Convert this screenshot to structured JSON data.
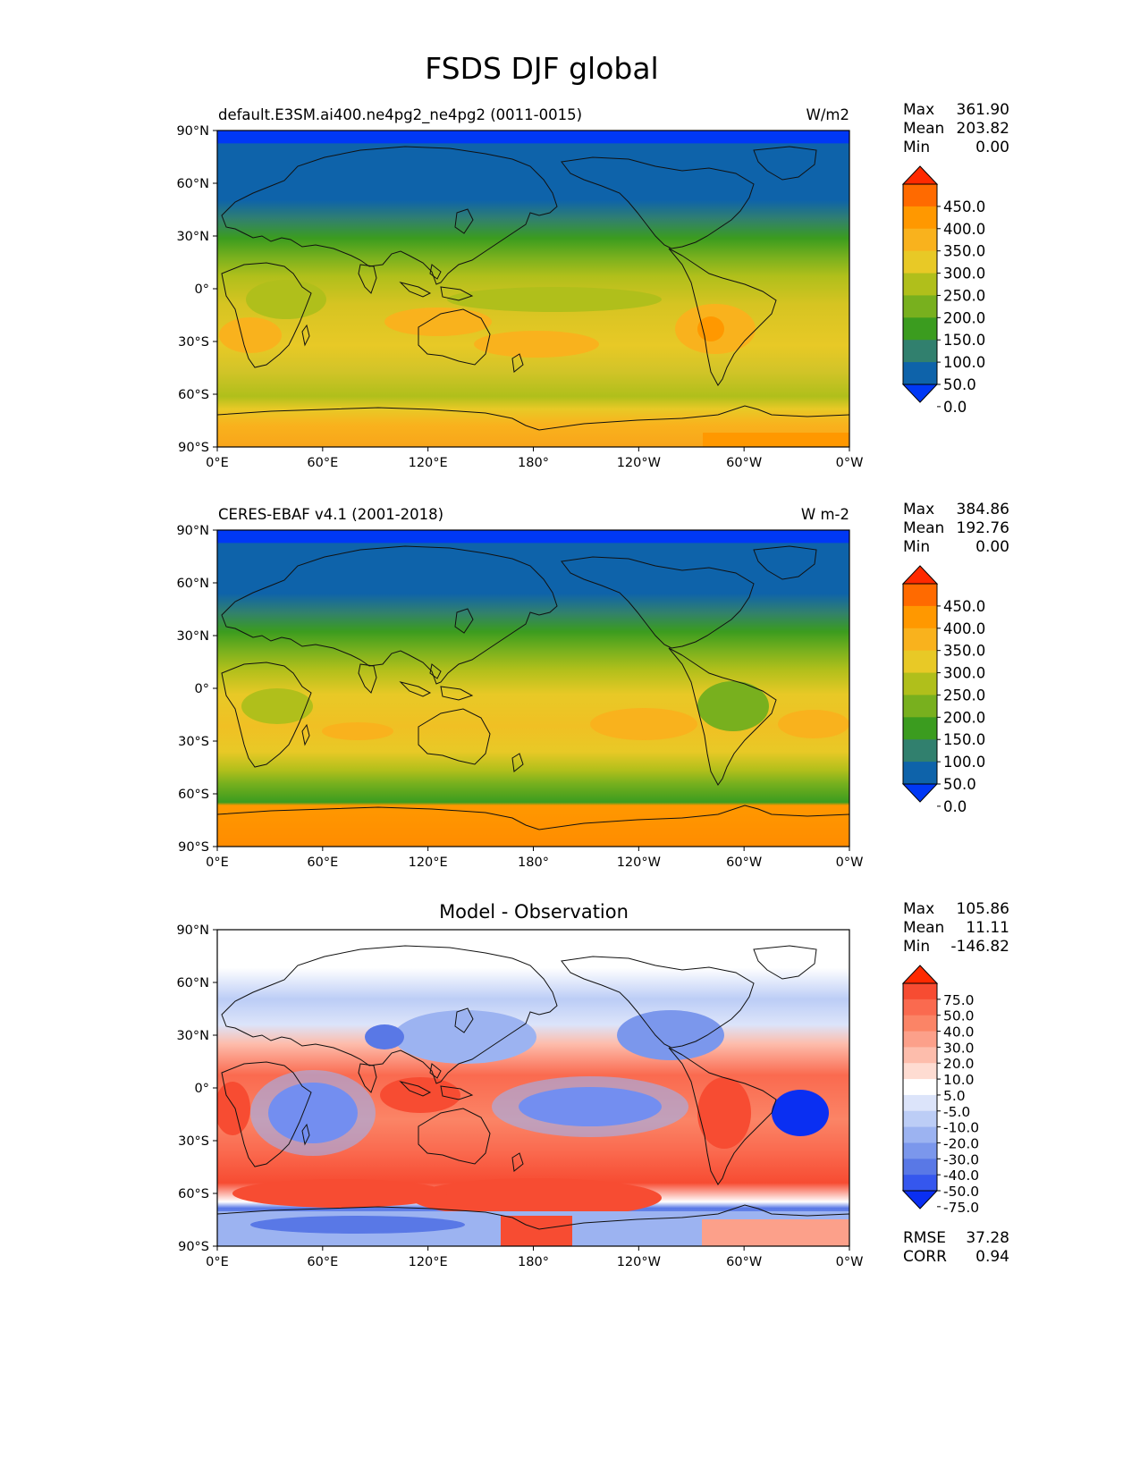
{
  "figure": {
    "title": "FSDS DJF global"
  },
  "axes": {
    "lat_labels": [
      "90°N",
      "60°N",
      "30°N",
      "0°",
      "30°S",
      "60°S",
      "90°S"
    ],
    "lon_labels": [
      "0°E",
      "60°E",
      "120°E",
      "180°",
      "120°W",
      "60°W",
      "0°W"
    ]
  },
  "stat_labels": {
    "max": "Max",
    "mean": "Mean",
    "min": "Min",
    "rmse": "RMSE",
    "corr": "CORR"
  },
  "panels": [
    {
      "id": "model",
      "title_left": "default.E3SM.ai400.ne4pg2_ne4pg2 (0011-0015)",
      "title_center": "",
      "units": "W/m2",
      "stats": {
        "max": "361.90",
        "mean": "203.82",
        "min": "0.00"
      },
      "colorbar": {
        "labels": [
          "450.0",
          "400.0",
          "350.0",
          "300.0",
          "250.0",
          "200.0",
          "150.0",
          "100.0",
          "50.0",
          "0.0"
        ],
        "colors": [
          "#ff2a00",
          "#ff6a00",
          "#ff9800",
          "#f9b21d",
          "#e8c926",
          "#b0bf1b",
          "#78b01e",
          "#3b9c1f",
          "#31806e",
          "#0e63aa",
          "#0038f5"
        ]
      }
    },
    {
      "id": "obs",
      "title_left": "CERES-EBAF v4.1 (2001-2018)",
      "title_center": "",
      "units": "W m-2",
      "stats": {
        "max": "384.86",
        "mean": "192.76",
        "min": "0.00"
      },
      "colorbar": {
        "labels": [
          "450.0",
          "400.0",
          "350.0",
          "300.0",
          "250.0",
          "200.0",
          "150.0",
          "100.0",
          "50.0",
          "0.0"
        ],
        "colors": [
          "#ff2a00",
          "#ff6a00",
          "#ff9800",
          "#f9b21d",
          "#e8c926",
          "#b0bf1b",
          "#78b01e",
          "#3b9c1f",
          "#31806e",
          "#0e63aa",
          "#0038f5"
        ]
      }
    },
    {
      "id": "diff",
      "title_left": "",
      "title_center": "Model - Observation",
      "units": "",
      "stats": {
        "max": "105.86",
        "mean": "11.11",
        "min": "-146.82",
        "rmse": "37.28",
        "corr": "0.94"
      },
      "colorbar": {
        "labels": [
          "75.0",
          "50.0",
          "40.0",
          "30.0",
          "20.0",
          "10.0",
          "5.0",
          "-5.0",
          "-10.0",
          "-20.0",
          "-30.0",
          "-40.0",
          "-50.0",
          "-75.0"
        ],
        "colors": [
          "#ff2a00",
          "#f74c32",
          "#fa6a4f",
          "#fb8466",
          "#fca08a",
          "#fdbdac",
          "#fedcd2",
          "#ffffff",
          "#dce4fa",
          "#bccdf6",
          "#9cb3f1",
          "#7b97ec",
          "#5978e6",
          "#3557ee",
          "#0a2ff2"
        ]
      }
    }
  ]
}
